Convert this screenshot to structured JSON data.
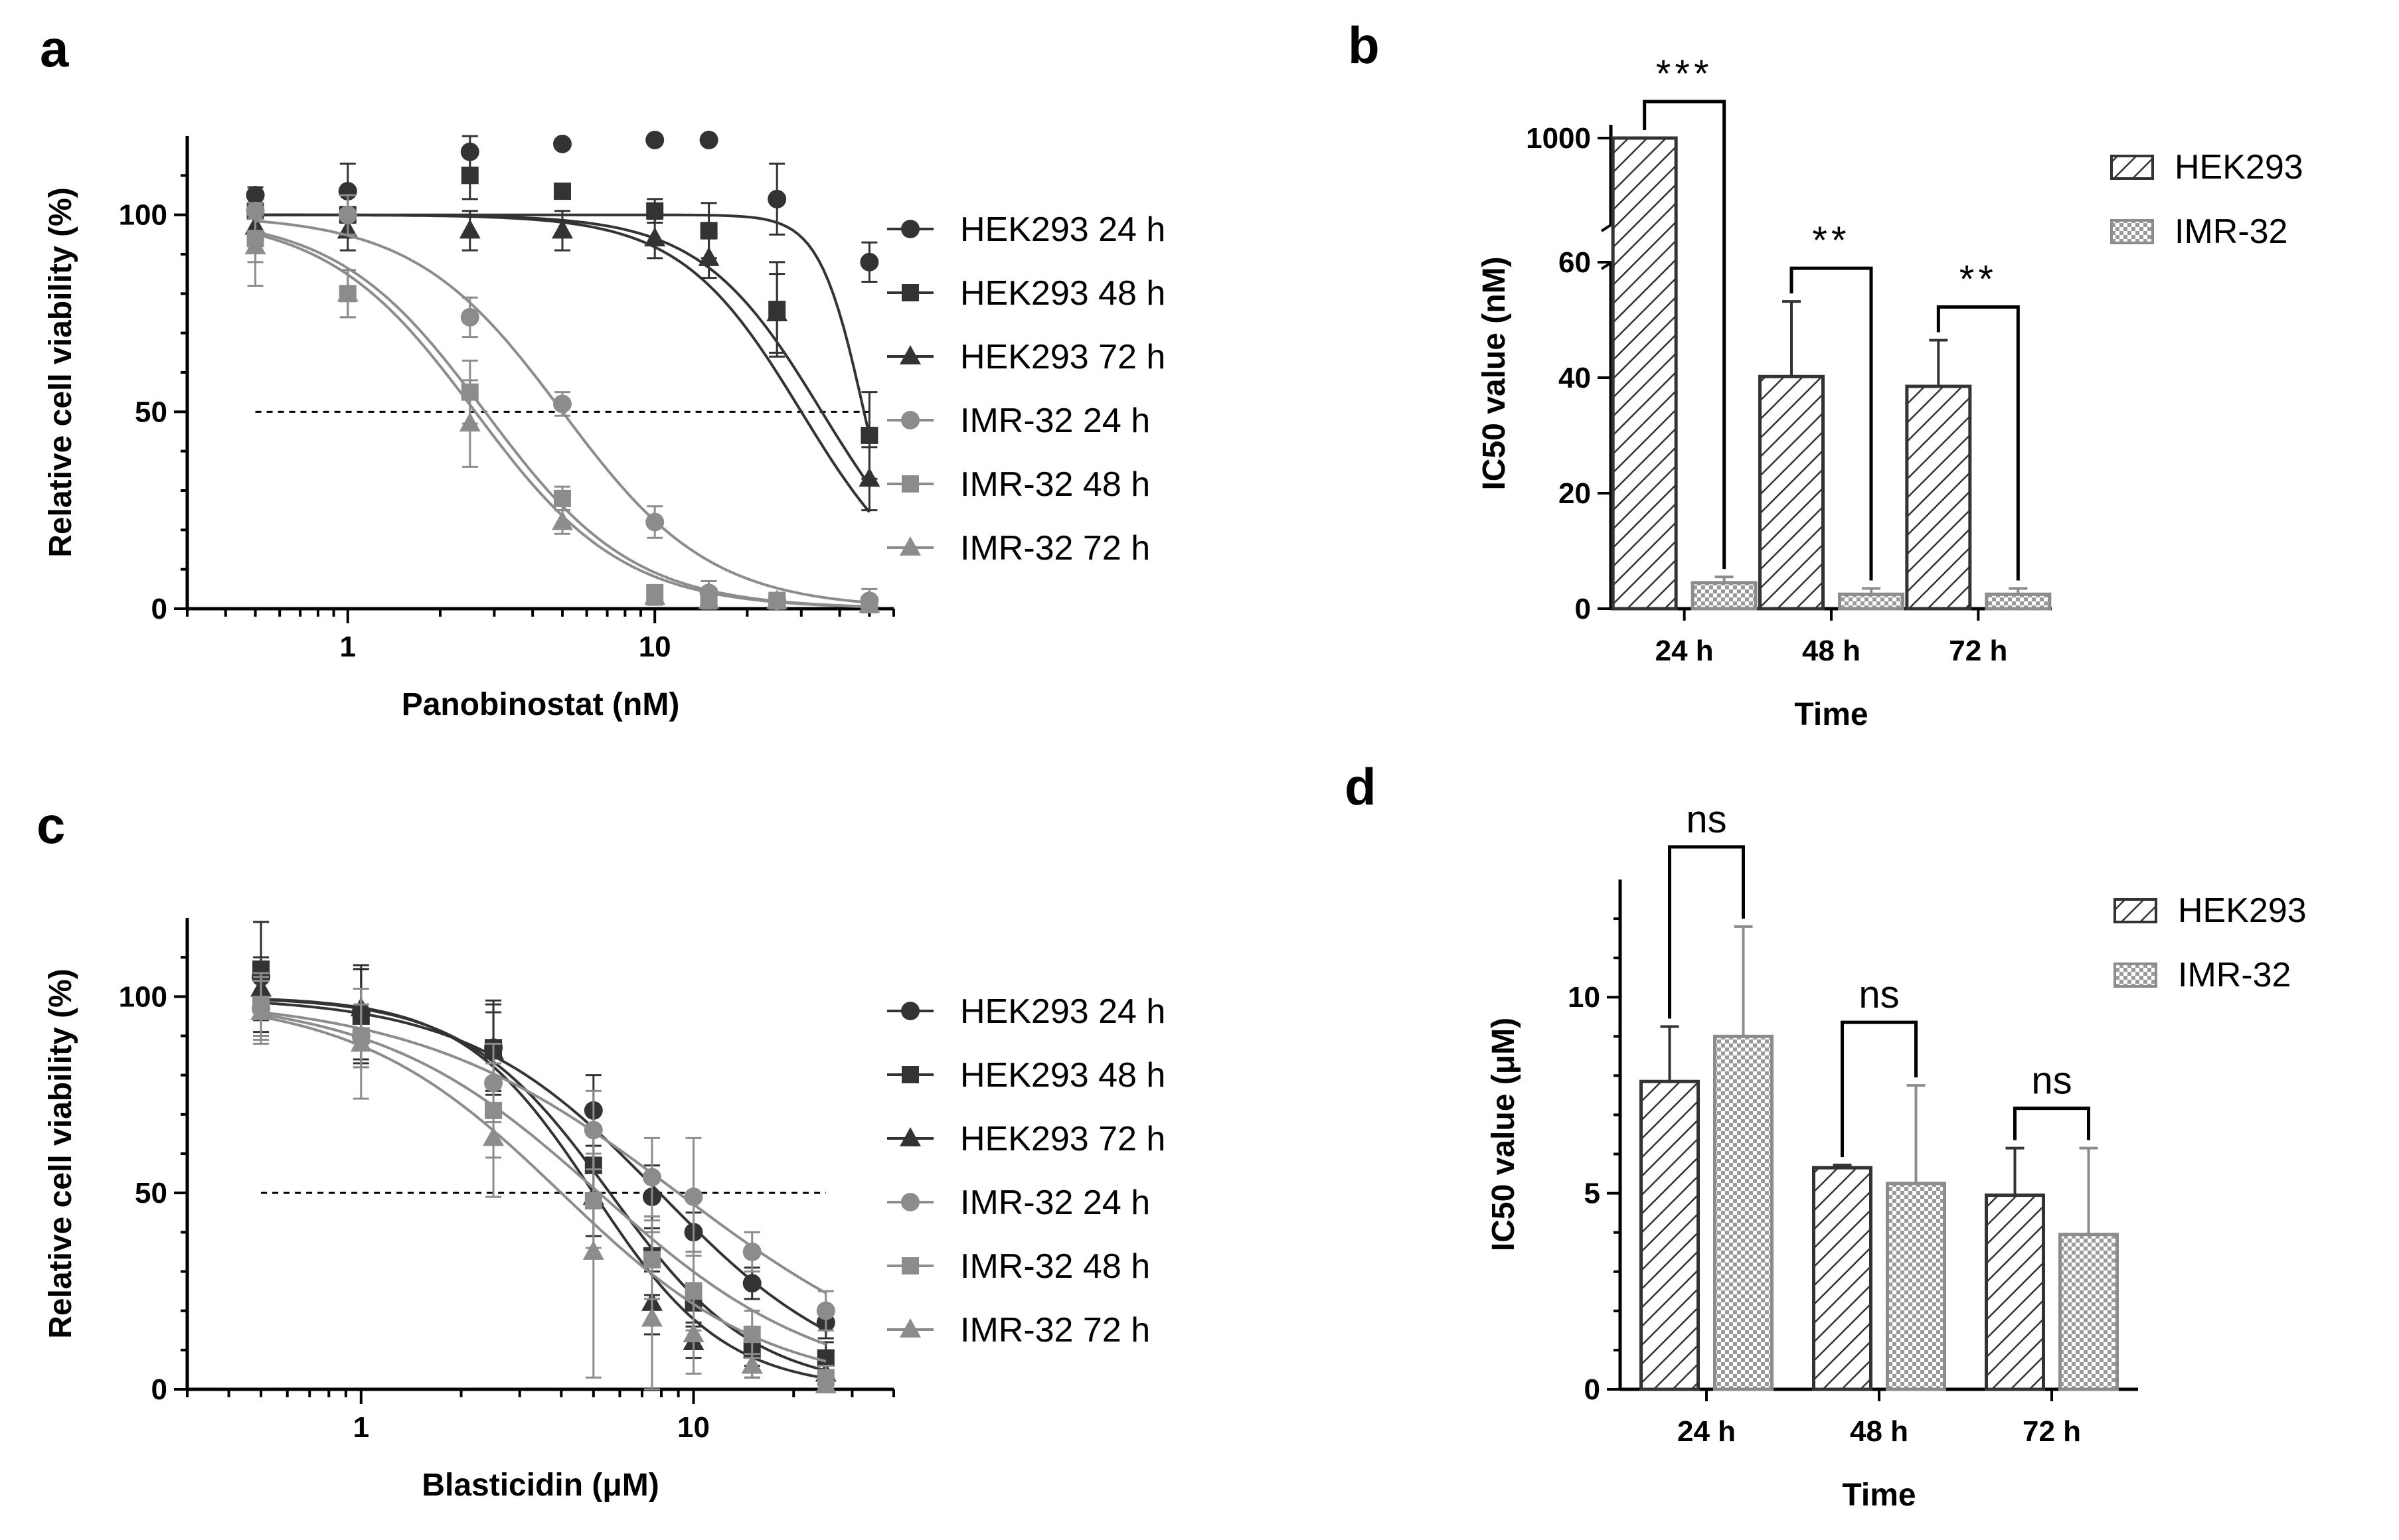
{
  "chart_data": [
    {
      "panel": "a",
      "type": "scatter",
      "xscale": "log",
      "xlabel": "Panobinostat (nM)",
      "ylabel": "Relative cell viability (%)",
      "xlim": [
        0.3,
        60
      ],
      "ylim": [
        0,
        120
      ],
      "xticks": [
        {
          "value": 1,
          "label": "1"
        },
        {
          "value": 10,
          "label": "10"
        }
      ],
      "yticks": [
        {
          "value": 0,
          "label": "0"
        },
        {
          "value": 50,
          "label": "50"
        },
        {
          "value": 100,
          "label": "100"
        }
      ],
      "reference_line_y": 50,
      "x": [
        0.5,
        1,
        2.5,
        5,
        10,
        15,
        25,
        50
      ],
      "series": [
        {
          "name": "HEK293 24 h",
          "marker": "circle",
          "color": "#333333",
          "ic50": 48,
          "hill": 6,
          "values": [
            105,
            106,
            116,
            118,
            119,
            119,
            104,
            88
          ],
          "errors": [
            2,
            7,
            4,
            0,
            1,
            1,
            9,
            5
          ]
        },
        {
          "name": "HEK293 48 h",
          "marker": "square",
          "color": "#333333",
          "ic50": 35,
          "hill": 2.2,
          "values": [
            101,
            100,
            110,
            106,
            101,
            96,
            76,
            44
          ],
          "errors": [
            2,
            2,
            6,
            0,
            3,
            7,
            12,
            11
          ]
        },
        {
          "name": "HEK293 72 h",
          "marker": "triangle",
          "color": "#333333",
          "ic50": 30,
          "hill": 2.2,
          "values": [
            97,
            96,
            96,
            96,
            94,
            89,
            75,
            33
          ],
          "errors": [
            3,
            5,
            5,
            5,
            5,
            5,
            10,
            8
          ]
        },
        {
          "name": "IMR-32 24 h",
          "marker": "circle",
          "color": "#8c8c8c",
          "ic50": 5,
          "hill": 1.8,
          "values": [
            101,
            100,
            74,
            52,
            22,
            4,
            2,
            2
          ],
          "errors": [
            2,
            5,
            5,
            3,
            4,
            3,
            2,
            3
          ]
        },
        {
          "name": "IMR-32 48 h",
          "marker": "square",
          "color": "#8c8c8c",
          "ic50": 2.8,
          "hill": 1.8,
          "values": [
            94,
            80,
            55,
            28,
            4,
            3,
            2,
            1
          ],
          "errors": [
            6,
            6,
            8,
            3,
            2,
            2,
            2,
            2
          ]
        },
        {
          "name": "IMR-32 72 h",
          "marker": "triangle",
          "color": "#8c8c8c",
          "ic50": 2.6,
          "hill": 1.8,
          "values": [
            92,
            80,
            47,
            22,
            3,
            2,
            2,
            1
          ],
          "errors": [
            10,
            6,
            11,
            3,
            2,
            2,
            2,
            2
          ]
        }
      ]
    },
    {
      "panel": "b",
      "type": "bar",
      "xlabel": "Time",
      "ylabel": "IC50 value (nM)",
      "categories": [
        "24 h",
        "48 h",
        "72 h"
      ],
      "ylim": [
        0,
        1000
      ],
      "axis_break": [
        60,
        1000
      ],
      "yticks": [
        {
          "value": 0,
          "label": "0"
        },
        {
          "value": 20,
          "label": "20"
        },
        {
          "value": 40,
          "label": "40"
        },
        {
          "value": 60,
          "label": "60"
        },
        {
          "value": 1000,
          "label": "1000"
        }
      ],
      "series": [
        {
          "name": "HEK293",
          "pattern": "hatch",
          "values": [
            1000,
            40.2,
            38.5
          ],
          "errors": [
            0,
            13,
            8
          ]
        },
        {
          "name": "IMR-32",
          "pattern": "dots",
          "values": [
            4.5,
            2.5,
            2.5
          ],
          "errors": [
            1,
            1,
            1
          ]
        }
      ],
      "significance": [
        "***",
        "**",
        "**"
      ]
    },
    {
      "panel": "c",
      "type": "scatter",
      "xscale": "log",
      "xlabel": "Blasticidin (μM)",
      "ylabel": "Relative cell viability (%)",
      "xlim": [
        0.3,
        40
      ],
      "ylim": [
        0,
        120
      ],
      "xticks": [
        {
          "value": 1,
          "label": "1"
        },
        {
          "value": 10,
          "label": "10"
        }
      ],
      "yticks": [
        {
          "value": 0,
          "label": "0"
        },
        {
          "value": 50,
          "label": "50"
        },
        {
          "value": 100,
          "label": "100"
        }
      ],
      "reference_line_y": 50,
      "x": [
        0.5,
        1,
        2.5,
        5,
        7.5,
        10,
        15,
        25
      ],
      "series": [
        {
          "name": "HEK293 24 h",
          "marker": "circle",
          "color": "#333333",
          "ic50": 7.9,
          "hill": 1.5,
          "values": [
            105,
            96,
            87,
            71,
            49,
            40,
            27,
            17
          ],
          "errors": [
            14,
            12,
            12,
            9,
            8,
            5,
            4,
            4
          ]
        },
        {
          "name": "HEK293 48 h",
          "marker": "square",
          "color": "#333333",
          "ic50": 5.6,
          "hill": 2.0,
          "values": [
            107,
            95,
            87,
            57,
            34,
            22,
            10,
            8
          ],
          "errors": [
            12,
            12,
            11,
            10,
            10,
            5,
            4,
            4
          ]
        },
        {
          "name": "HEK293 72 h",
          "marker": "triangle",
          "color": "#333333",
          "ic50": 5.0,
          "hill": 2.2,
          "values": [
            102,
            97,
            86,
            49,
            22,
            12,
            6,
            4
          ],
          "errors": [
            8,
            10,
            10,
            10,
            8,
            4,
            3,
            3
          ]
        },
        {
          "name": "IMR-32 24 h",
          "marker": "circle",
          "color": "#8c8c8c",
          "ic50": 9.0,
          "hill": 1.1,
          "values": [
            97,
            90,
            78,
            66,
            54,
            49,
            35,
            20
          ],
          "errors": [
            8,
            8,
            10,
            10,
            10,
            15,
            5,
            5
          ]
        },
        {
          "name": "IMR-32 48 h",
          "marker": "square",
          "color": "#8c8c8c",
          "ic50": 5.2,
          "hill": 1.3,
          "values": [
            98,
            90,
            71,
            48,
            33,
            25,
            14,
            3
          ],
          "errors": [
            8,
            8,
            12,
            12,
            10,
            10,
            6,
            3
          ]
        },
        {
          "name": "IMR-32 72 h",
          "marker": "triangle",
          "color": "#8c8c8c",
          "ic50": 4.0,
          "hill": 1.4,
          "values": [
            96,
            88,
            64,
            35,
            18,
            14,
            6,
            1
          ],
          "errors": [
            8,
            14,
            15,
            32,
            22,
            10,
            3,
            2
          ]
        }
      ]
    },
    {
      "panel": "d",
      "type": "bar",
      "xlabel": "Time",
      "ylabel": "IC50 value (μM)",
      "categories": [
        "24 h",
        "48 h",
        "72 h"
      ],
      "ylim": [
        0,
        13
      ],
      "yticks": [
        {
          "value": 0,
          "label": "0"
        },
        {
          "value": 5,
          "label": "5"
        },
        {
          "value": 10,
          "label": "10"
        }
      ],
      "series": [
        {
          "name": "HEK293",
          "pattern": "hatch",
          "values": [
            7.85,
            5.65,
            4.95
          ],
          "errors": [
            1.4,
            0.07,
            1.2
          ]
        },
        {
          "name": "IMR-32",
          "pattern": "dots",
          "values": [
            9.0,
            5.25,
            3.95
          ],
          "errors": [
            2.8,
            2.5,
            2.2
          ]
        }
      ],
      "significance": [
        "ns",
        "ns",
        "ns"
      ]
    }
  ]
}
